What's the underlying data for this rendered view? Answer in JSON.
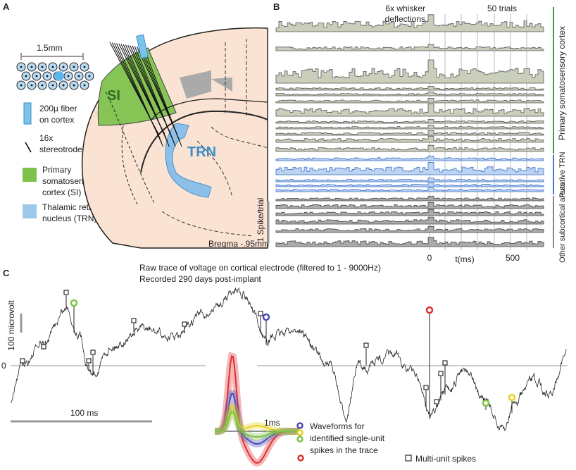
{
  "panel_a": {
    "label": "A",
    "scale": "1.5mm",
    "legend": [
      {
        "lines": [
          "200µ fiber",
          "on cortex"
        ]
      },
      {
        "lines": [
          "16x",
          "stereotrodes"
        ]
      },
      {
        "lines": [
          "Primary",
          "somatosensory",
          "cortex (SI)"
        ]
      },
      {
        "lines": [
          "Thalamic reticular",
          "nucleus (TRN)"
        ]
      }
    ],
    "regions": [
      "SI",
      "TRN"
    ],
    "bregma": "Bregma -.95mm"
  },
  "panel_b": {
    "label": "B",
    "stimulus": [
      "6x whisker",
      "deflections"
    ],
    "trials": "50 trials",
    "groups": [
      "Primary somatosensory cortex",
      "Putative TRN",
      "Other subcortical areas"
    ],
    "scale": "1 Spike/trial",
    "x_axis": {
      "label": "t(ms)",
      "ticks": [
        "0",
        "500"
      ]
    }
  },
  "panel_c": {
    "label": "C",
    "title": [
      "Raw trace of voltage on cortical electrode (filtered to 1 - 9000Hz)",
      "Recorded 290 days post-implant"
    ],
    "y_scale": "100 microvolt",
    "zero": "0",
    "x_scale": "100 ms",
    "inset_scale": "1ms",
    "waveforms": [
      "Waveforms for",
      "identified single-unit",
      "spikes in the trace"
    ],
    "multi_unit": "Multi-unit spikes"
  }
}
